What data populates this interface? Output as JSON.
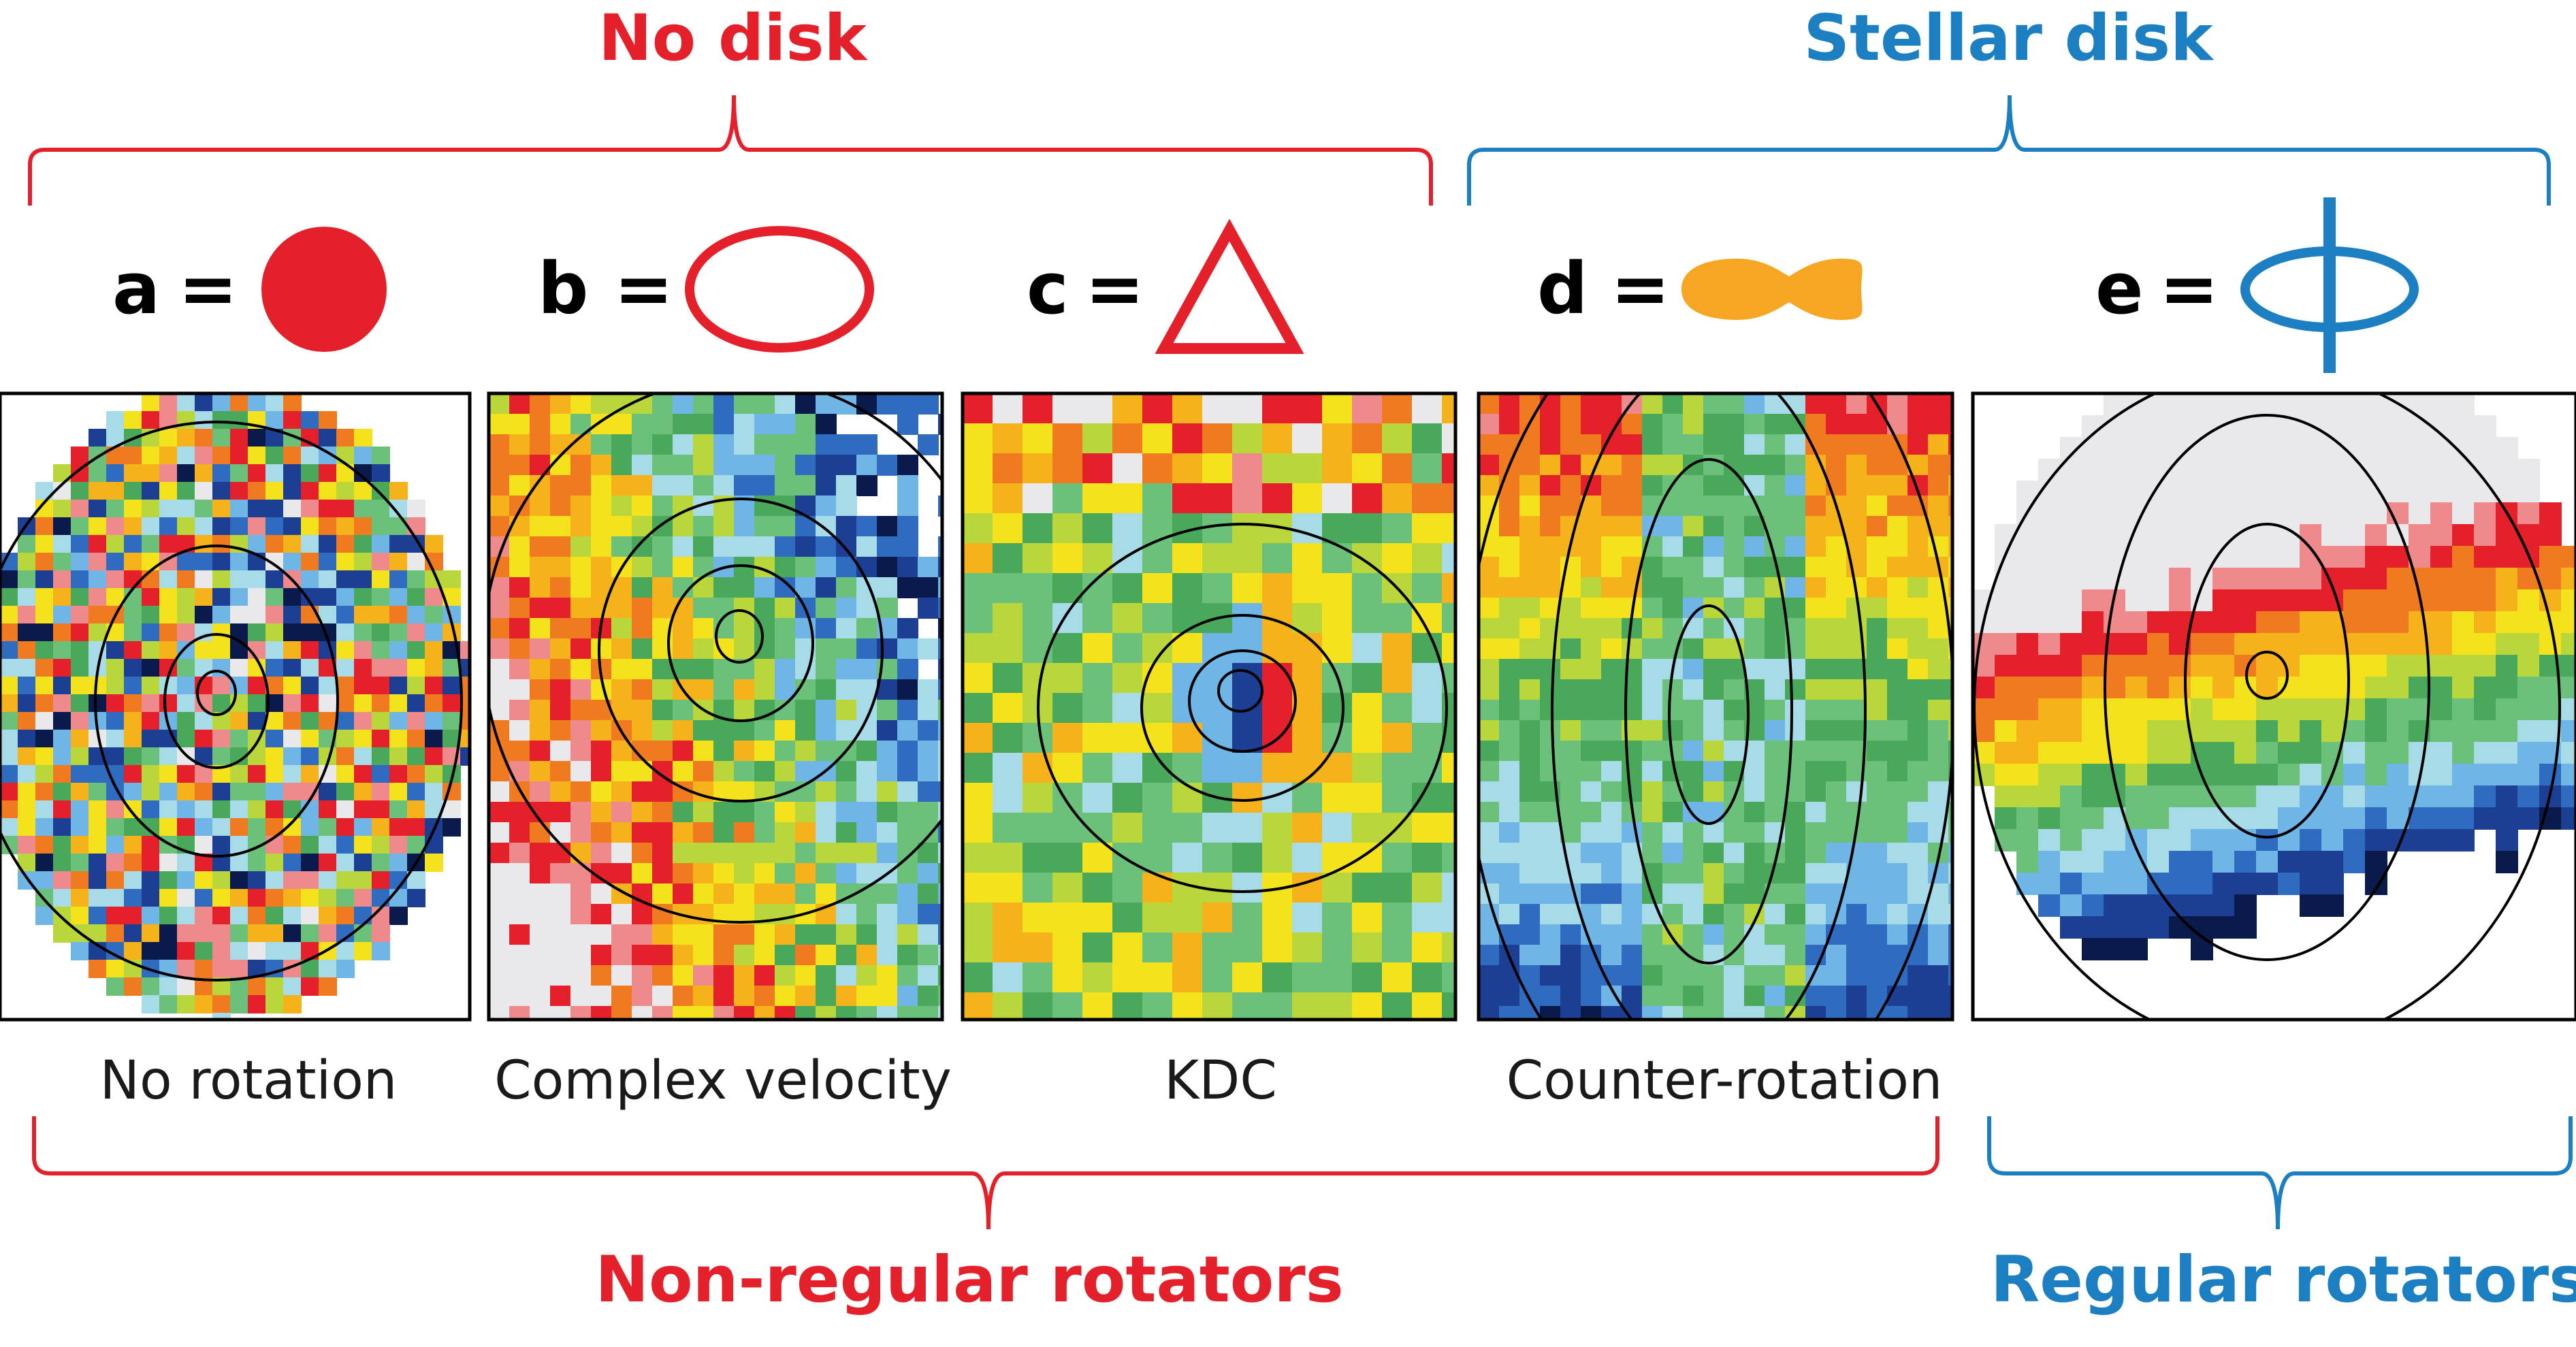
{
  "colors": {
    "red": "#e4202a",
    "blue": "#1b7fc1",
    "orange": "#f6a623",
    "black": "#000000"
  },
  "headers": {
    "top_left": "No disk",
    "top_right": "Stellar disk",
    "bottom_left": "Non-regular rotators",
    "bottom_right": "Regular rotators"
  },
  "legend": [
    {
      "letter": "a",
      "symbol": "filled-red-circle"
    },
    {
      "letter": "b",
      "symbol": "open-red-ellipse"
    },
    {
      "letter": "c",
      "symbol": "open-red-triangle"
    },
    {
      "letter": "d",
      "symbol": "orange-double-lobe"
    },
    {
      "letter": "e",
      "symbol": "blue-ellipse-with-vertical-axis"
    }
  ],
  "equals": "=",
  "panels": [
    {
      "caption": "No rotation"
    },
    {
      "caption": "Complex velocity"
    },
    {
      "caption": "KDC"
    },
    {
      "caption": "Counter-rotation"
    },
    {
      "caption": ""
    }
  ]
}
